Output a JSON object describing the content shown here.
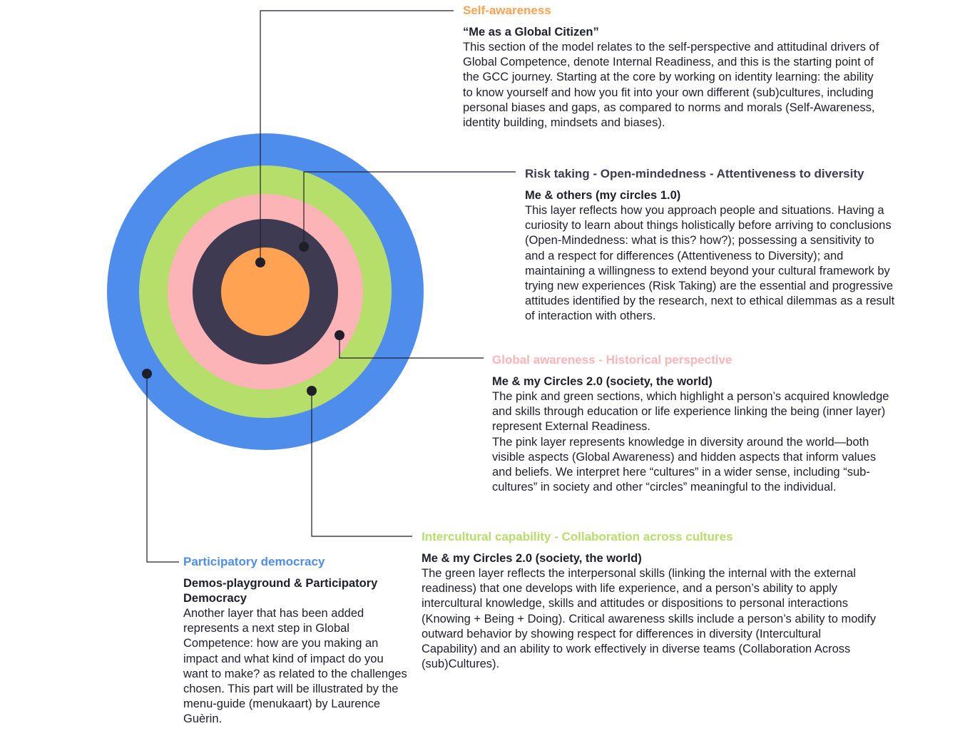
{
  "colors": {
    "blue": "#4f8ded",
    "green": "#b6de6a",
    "pink": "#fdb4b6",
    "navy": "#3d3a52",
    "orange": "#ffa252",
    "text": "#1f1f2b",
    "leader": "#1f1f2b"
  },
  "sections": {
    "self_awareness": {
      "heading": "Self-awareness",
      "subtitle": "“Me as a Global Citizen”",
      "body": "This section of the model relates to the self-perspective and attitudinal drivers of Global Competence, denote Internal Readiness, and this is the starting point of the GCC journey. Starting at the core by working on identity learning: the ability to know yourself and how you fit into your own different (sub)cultures, including personal biases and gaps, as compared to norms and morals (Self-Awareness, identity building, mindsets and biases)."
    },
    "risk_taking": {
      "heading": "Risk taking - Open-mindedness - Attentiveness to diversity",
      "subtitle": "Me & others (my circles 1.0)",
      "body": "This layer reflects how you approach people and situations. Having a curiosity to learn about things holistically before arriving to conclusions (Open-Mindedness: what is this? how?); possessing a sensitivity to and a respect for differences (Attentiveness to Diversity); and maintaining a willingness to extend beyond your cultural framework by trying new experiences (Risk Taking) are the essential and progressive attitudes identified by the research, next to ethical dilemmas as a result of interaction with others."
    },
    "global_awareness": {
      "heading": "Global awareness - Historical perspective",
      "subtitle": "Me & my Circles 2.0 (society, the world)",
      "body": "The pink and green sections, which highlight a person’s acquired knowledge and skills through education or life experience linking the being (inner layer) represent External Readiness.\nThe pink layer represents knowledge in diversity around the world—both visible aspects (Global Awareness) and hidden aspects that inform values and beliefs. We interpret here “cultures” in a wider sense, including “sub-cultures” in society and other “circles” meaningful to the individual."
    },
    "intercultural": {
      "heading": "Intercultural capability - Collaboration across cultures",
      "subtitle": "Me & my Circles 2.0 (society, the world)",
      "body": "The green layer reflects the interpersonal skills (linking the internal with the external readiness) that one develops with life experience, and a person’s ability to apply intercultural knowledge, skills and attitudes or dispositions to personal interactions (Knowing + Being + Doing). Critical awareness skills include a person’s ability to modify outward behavior by showing respect for differences in diversity (Intercultural Capability) and an ability to work effectively in diverse teams (Collaboration Across (sub)Cultures)."
    },
    "participatory_democracy": {
      "heading": "Participatory democracy",
      "subtitle": "Demos-playground & Participatory Democracy",
      "body": "Another layer that has been added represents a next step in Global Competence: how are you making an impact and what kind of impact do you want to make? as related to the challenges chosen. This part will be illustrated by the menu-guide (menukaart) by Laurence Guèrin."
    }
  }
}
